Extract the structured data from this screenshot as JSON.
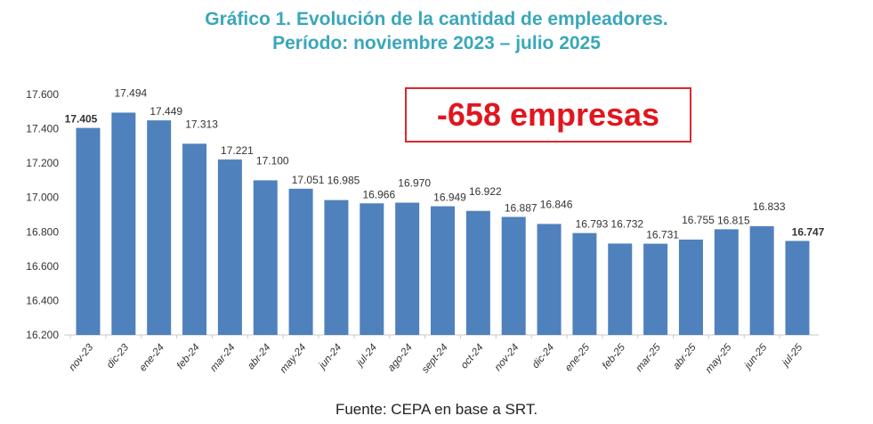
{
  "chart_data": {
    "type": "bar",
    "title": "Gráfico 1. Evolución de la cantidad de empleadores.",
    "subtitle": "Período: noviembre 2023 – julio 2025",
    "categories": [
      "nov-23",
      "dic-23",
      "ene-24",
      "feb-24",
      "mar-24",
      "abr-24",
      "may-24",
      "jun-24",
      "jul-24",
      "ago-24",
      "sept-24",
      "oct-24",
      "nov-24",
      "dic-24",
      "ene-25",
      "feb-25",
      "mar-25",
      "abr-25",
      "may-25",
      "jun-25",
      "jul-25"
    ],
    "values": [
      17405,
      17494,
      17449,
      17313,
      17221,
      17100,
      17051,
      16985,
      16966,
      16970,
      16949,
      16922,
      16887,
      16846,
      16793,
      16732,
      16731,
      16755,
      16815,
      16833,
      16747
    ],
    "value_labels": [
      "17.405",
      "17.494",
      "17.449",
      "17.313",
      "17.221",
      "17.100",
      "17.051",
      "16.985",
      "16.966",
      "16.970",
      "16.949",
      "16.922",
      "16.887",
      "16.846",
      "16.793",
      "16.732",
      "16.731",
      "16.755",
      "16.815",
      "16.833",
      "16.747"
    ],
    "bold_labels": [
      0,
      20
    ],
    "ylim": [
      16200,
      17600
    ],
    "yticks": [
      "16.200",
      "16.400",
      "16.600",
      "16.800",
      "17.000",
      "17.200",
      "17.400",
      "17.600"
    ],
    "xlabel": "",
    "ylabel": "",
    "grid": false,
    "bar_color": "#4f81bd",
    "annotation": "-658 empresas",
    "annotation_color": "#e0161e",
    "source": "Fuente: CEPA en base a SRT."
  }
}
